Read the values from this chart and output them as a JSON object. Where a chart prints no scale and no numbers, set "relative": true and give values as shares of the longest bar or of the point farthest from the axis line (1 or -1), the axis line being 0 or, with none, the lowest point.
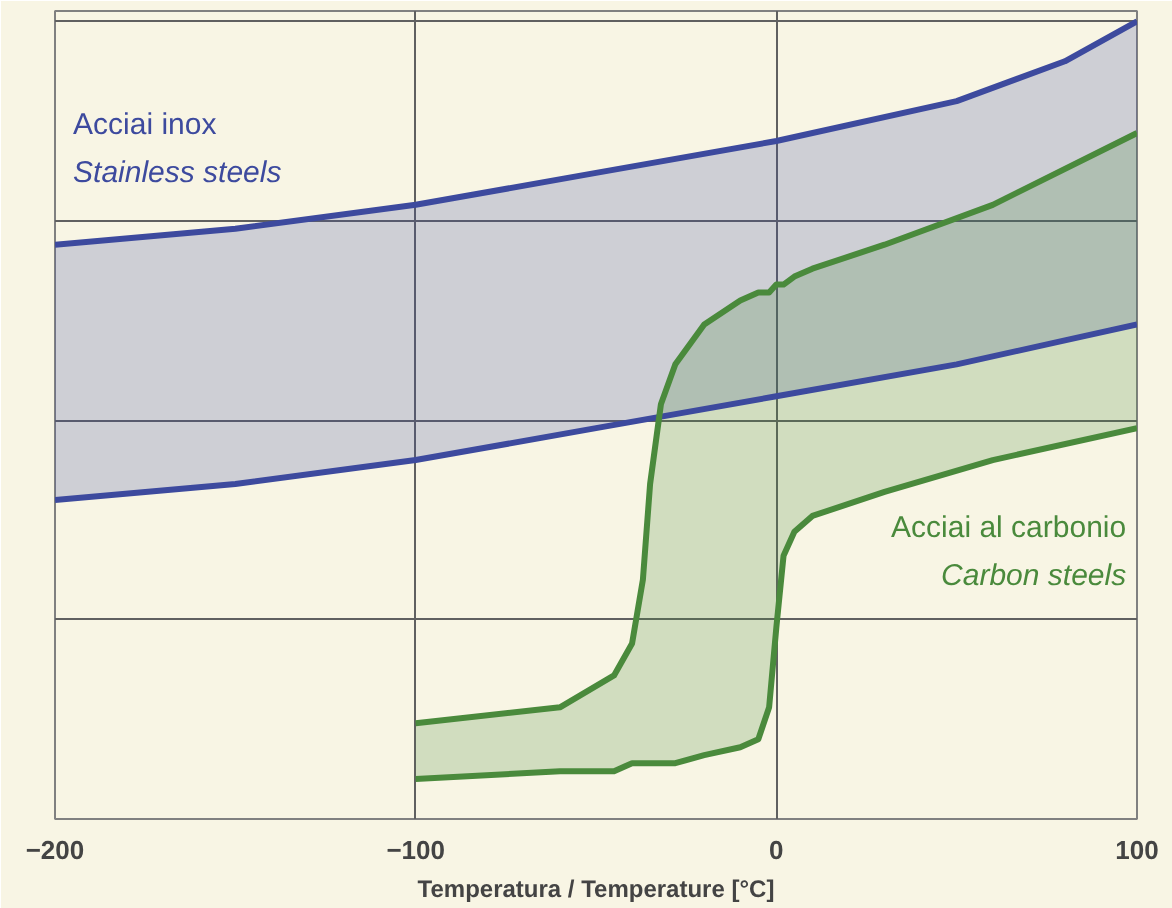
{
  "chart_data": {
    "type": "line",
    "relative": true,
    "xlabel": "Temperatura / Temperature [°C]",
    "xlim": [
      -200,
      100
    ],
    "xticks": [
      -200,
      -100,
      0,
      100
    ],
    "grid": true,
    "series": [
      {
        "name": "Acciai inox\nStainless steels",
        "color": "#3d4a9e",
        "x": [
          -200,
          -150,
          -100,
          -50,
          0,
          50,
          80,
          100
        ],
        "values": [
          0.72,
          0.74,
          0.77,
          0.81,
          0.85,
          0.9,
          0.95,
          1.0
        ],
        "lower": [
          0.4,
          0.42,
          0.45,
          0.49,
          0.53,
          0.57,
          0.6,
          0.62
        ],
        "upper": [
          0.72,
          0.74,
          0.77,
          0.81,
          0.85,
          0.9,
          0.95,
          1.0
        ]
      },
      {
        "color": "#3d4a9e",
        "x": [
          -200,
          -150,
          -100,
          -50,
          0,
          50,
          80,
          100
        ],
        "values": [
          0.4,
          0.42,
          0.45,
          0.49,
          0.53,
          0.57,
          0.6,
          0.62
        ]
      },
      {
        "name": "Acciai al carbonio\nCarbon steels",
        "color": "#4a8a3c",
        "x": [
          -100,
          -60,
          -45,
          -40,
          -37,
          -35,
          -32,
          -28,
          -20,
          -10,
          -5,
          -2,
          0,
          2,
          5,
          10,
          30,
          60,
          100
        ],
        "values": [
          0.12,
          0.14,
          0.18,
          0.22,
          0.3,
          0.42,
          0.52,
          0.57,
          0.62,
          0.65,
          0.66,
          0.66,
          0.67,
          0.67,
          0.68,
          0.69,
          0.72,
          0.77,
          0.86
        ],
        "lower": [
          0.05,
          0.06,
          0.06,
          0.07,
          0.07,
          0.07,
          0.07,
          0.07,
          0.08,
          0.09,
          0.1,
          0.14,
          0.24,
          0.33,
          0.36,
          0.38,
          0.41,
          0.45,
          0.49
        ],
        "upper": [
          0.12,
          0.14,
          0.18,
          0.22,
          0.3,
          0.42,
          0.52,
          0.57,
          0.62,
          0.65,
          0.66,
          0.66,
          0.67,
          0.67,
          0.68,
          0.69,
          0.72,
          0.77,
          0.86
        ]
      },
      {
        "color": "#4a8a3c",
        "x": [
          -100,
          -60,
          -45,
          -40,
          -37,
          -35,
          -32,
          -28,
          -20,
          -10,
          -5,
          -2,
          0,
          2,
          5,
          10,
          30,
          60,
          100
        ],
        "values": [
          0.05,
          0.06,
          0.06,
          0.07,
          0.07,
          0.07,
          0.07,
          0.07,
          0.08,
          0.09,
          0.1,
          0.14,
          0.24,
          0.33,
          0.36,
          0.38,
          0.41,
          0.45,
          0.49
        ]
      }
    ]
  }
}
